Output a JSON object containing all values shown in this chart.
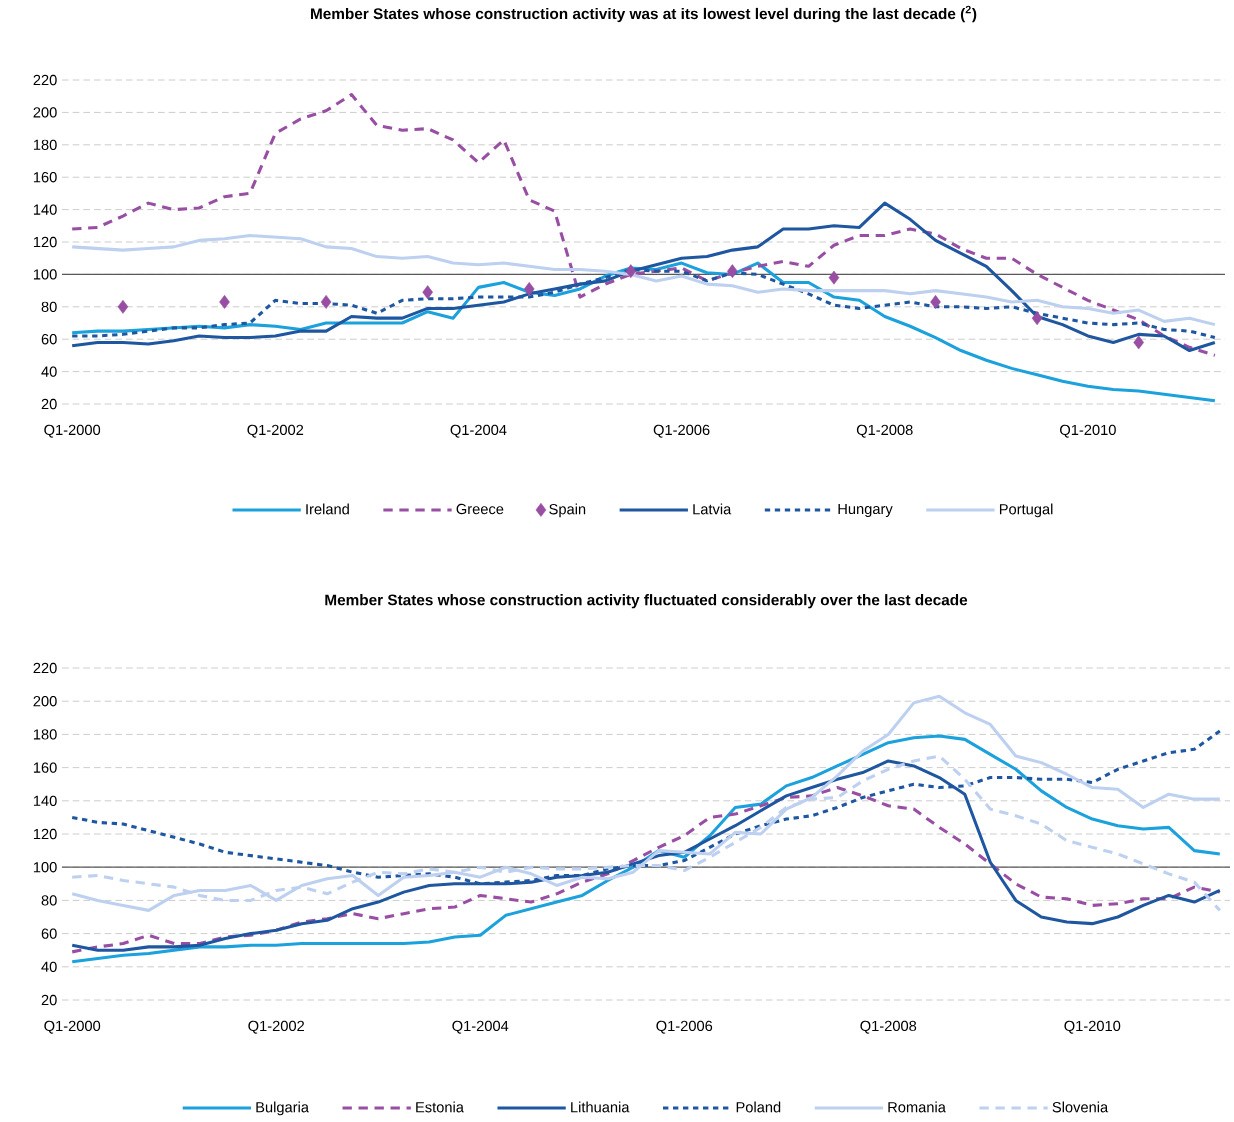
{
  "chart_data": [
    {
      "type": "line",
      "title": "Member States whose construction activity was at its lowest level during the last decade ($^{2}$)",
      "categories": [
        "Q1-2000",
        null,
        null,
        null,
        null,
        null,
        null,
        null,
        "Q1-2002",
        null,
        null,
        null,
        null,
        null,
        null,
        null,
        "Q1-2004",
        null,
        null,
        null,
        null,
        null,
        null,
        null,
        "Q1-2006",
        null,
        null,
        null,
        null,
        null,
        null,
        null,
        "Q1-2008",
        null,
        null,
        null,
        null,
        null,
        null,
        null,
        "Q1-2010",
        null,
        null,
        null,
        null,
        null
      ],
      "ylim": [
        20,
        220
      ],
      "yticks": [
        20,
        40,
        60,
        80,
        100,
        120,
        140,
        160,
        180,
        200,
        220
      ],
      "grid": "y",
      "legend": "bottom",
      "ref_lines": [
        {
          "axis": "y",
          "value": 100,
          "color": "#595959"
        }
      ],
      "series": [
        {
          "name": "Ireland",
          "color": "#1ba1dc",
          "line_style": "solid",
          "values": [
            64,
            65,
            65,
            66,
            67,
            68,
            67,
            69,
            68,
            66,
            70,
            70,
            70,
            70,
            77,
            73,
            92,
            95,
            89,
            87,
            91,
            99,
            104,
            103,
            107,
            101,
            100,
            107,
            95,
            95,
            86,
            84,
            74,
            68,
            61,
            53,
            47,
            42,
            38,
            34,
            31,
            29,
            28,
            26,
            24,
            22
          ]
        },
        {
          "name": "Greece",
          "color": "#984ea3",
          "line_style": "dashed",
          "values": [
            128,
            129,
            136,
            144,
            140,
            141,
            148,
            150,
            187,
            196,
            201,
            211,
            192,
            189,
            190,
            183,
            169,
            183,
            146,
            139,
            86,
            94,
            100,
            102,
            104,
            96,
            101,
            105,
            108,
            105,
            118,
            124,
            124,
            128,
            125,
            116,
            110,
            110,
            100,
            92,
            84,
            78,
            72,
            62,
            55,
            50
          ]
        },
        {
          "name": "Spain",
          "color": "#984ea3",
          "type": "scatter",
          "marker": "diamond",
          "values": [
            null,
            null,
            80,
            null,
            null,
            null,
            83,
            null,
            null,
            null,
            83,
            null,
            null,
            null,
            89,
            null,
            null,
            null,
            91,
            null,
            null,
            null,
            102,
            null,
            null,
            null,
            102,
            null,
            null,
            null,
            98,
            null,
            null,
            null,
            83,
            null,
            null,
            null,
            73,
            null,
            null,
            null,
            58,
            null,
            null,
            null
          ]
        },
        {
          "name": "Latvia",
          "color": "#1f56a0",
          "line_style": "solid",
          "values": [
            56,
            58,
            58,
            57,
            59,
            62,
            61,
            61,
            62,
            65,
            65,
            74,
            73,
            73,
            79,
            79,
            81,
            83,
            88,
            91,
            94,
            96,
            102,
            106,
            110,
            111,
            115,
            117,
            128,
            128,
            130,
            129,
            144,
            134,
            121,
            113,
            105,
            90,
            74,
            69,
            62,
            58,
            63,
            62,
            53,
            58
          ]
        },
        {
          "name": "Hungary",
          "color": "#1f56a0",
          "line_style": "dotted",
          "values": [
            62,
            62,
            63,
            65,
            67,
            67,
            69,
            70,
            84,
            82,
            82,
            81,
            76,
            84,
            85,
            85,
            86,
            86,
            86,
            89,
            94,
            98,
            103,
            102,
            102,
            96,
            101,
            100,
            94,
            88,
            81,
            79,
            81,
            83,
            80,
            80,
            79,
            80,
            76,
            73,
            70,
            69,
            70,
            66,
            65,
            61
          ]
        },
        {
          "name": "Portugal",
          "color": "#bdd0f0",
          "line_style": "solid",
          "values": [
            117,
            116,
            115,
            116,
            117,
            121,
            122,
            124,
            123,
            122,
            117,
            116,
            111,
            110,
            111,
            107,
            106,
            107,
            105,
            103,
            103,
            102,
            100,
            96,
            99,
            94,
            93,
            89,
            91,
            90,
            90,
            90,
            90,
            88,
            90,
            88,
            86,
            83,
            84,
            80,
            79,
            76,
            78,
            71,
            73,
            69
          ]
        }
      ]
    },
    {
      "type": "line",
      "title": "Member States whose construction activity fluctuated considerably over the last decade",
      "categories": [
        "Q1-2000",
        null,
        null,
        null,
        null,
        null,
        null,
        null,
        "Q1-2002",
        null,
        null,
        null,
        null,
        null,
        null,
        null,
        "Q1-2004",
        null,
        null,
        null,
        null,
        null,
        null,
        null,
        "Q1-2006",
        null,
        null,
        null,
        null,
        null,
        null,
        null,
        "Q1-2008",
        null,
        null,
        null,
        null,
        null,
        null,
        null,
        "Q1-2010",
        null,
        null,
        null,
        null,
        null
      ],
      "ylim": [
        20,
        220
      ],
      "yticks": [
        20,
        40,
        60,
        80,
        100,
        120,
        140,
        160,
        180,
        200,
        220
      ],
      "grid": "y",
      "legend": "bottom",
      "ref_lines": [
        {
          "axis": "y",
          "value": 100,
          "color": "#595959"
        }
      ],
      "series": [
        {
          "name": "Bulgaria",
          "color": "#1ba1dc",
          "line_style": "solid",
          "values": [
            43,
            45,
            47,
            48,
            50,
            52,
            52,
            53,
            53,
            54,
            54,
            54,
            54,
            54,
            55,
            58,
            59,
            71,
            75,
            79,
            83,
            92,
            100,
            110,
            106,
            119,
            136,
            138,
            149,
            154,
            161,
            168,
            175,
            178,
            179,
            177,
            168,
            159,
            146,
            136,
            129,
            125,
            123,
            124,
            110,
            108
          ]
        },
        {
          "name": "Estonia",
          "color": "#984ea3",
          "line_style": "dashed",
          "values": [
            49,
            52,
            54,
            59,
            54,
            54,
            58,
            59,
            62,
            67,
            69,
            72,
            69,
            72,
            75,
            76,
            83,
            81,
            79,
            84,
            91,
            96,
            104,
            112,
            119,
            130,
            132,
            137,
            142,
            143,
            148,
            143,
            137,
            135,
            124,
            114,
            102,
            90,
            82,
            81,
            77,
            78,
            81,
            81,
            88,
            85
          ]
        },
        {
          "name": "Lithuania",
          "color": "#1f56a0",
          "line_style": "solid",
          "values": [
            53,
            50,
            50,
            52,
            52,
            53,
            57,
            60,
            62,
            66,
            68,
            75,
            79,
            85,
            89,
            90,
            90,
            90,
            91,
            94,
            95,
            97,
            102,
            107,
            109,
            117,
            125,
            134,
            143,
            148,
            153,
            157,
            164,
            161,
            154,
            144,
            103,
            80,
            70,
            67,
            66,
            70,
            77,
            83,
            79,
            86
          ]
        },
        {
          "name": "Poland",
          "color": "#1f56a0",
          "line_style": "dotted",
          "values": [
            130,
            127,
            126,
            122,
            118,
            114,
            109,
            107,
            105,
            103,
            101,
            97,
            94,
            95,
            96,
            94,
            90,
            91,
            92,
            95,
            95,
            99,
            101,
            101,
            104,
            112,
            120,
            125,
            129,
            131,
            136,
            142,
            146,
            150,
            148,
            149,
            154,
            154,
            153,
            153,
            151,
            159,
            164,
            169,
            171,
            182
          ]
        },
        {
          "name": "Romania",
          "color": "#bdd0f0",
          "line_style": "solid",
          "values": [
            84,
            80,
            77,
            74,
            83,
            86,
            86,
            89,
            80,
            89,
            93,
            95,
            83,
            94,
            95,
            97,
            94,
            100,
            96,
            89,
            94,
            93,
            97,
            110,
            109,
            108,
            121,
            120,
            135,
            142,
            155,
            170,
            180,
            199,
            203,
            193,
            186,
            167,
            163,
            156,
            148,
            147,
            136,
            144,
            141,
            141
          ]
        },
        {
          "name": "Slovenia",
          "color": "#bdd0f0",
          "line_style": "dashed",
          "values": [
            94,
            95,
            92,
            90,
            88,
            83,
            80,
            80,
            86,
            88,
            84,
            91,
            97,
            96,
            99,
            97,
            100,
            97,
            100,
            99,
            99,
            100,
            101,
            101,
            98,
            106,
            115,
            124,
            136,
            141,
            142,
            152,
            159,
            164,
            167,
            153,
            135,
            131,
            126,
            116,
            112,
            108,
            102,
            96,
            91,
            74
          ]
        }
      ]
    }
  ]
}
